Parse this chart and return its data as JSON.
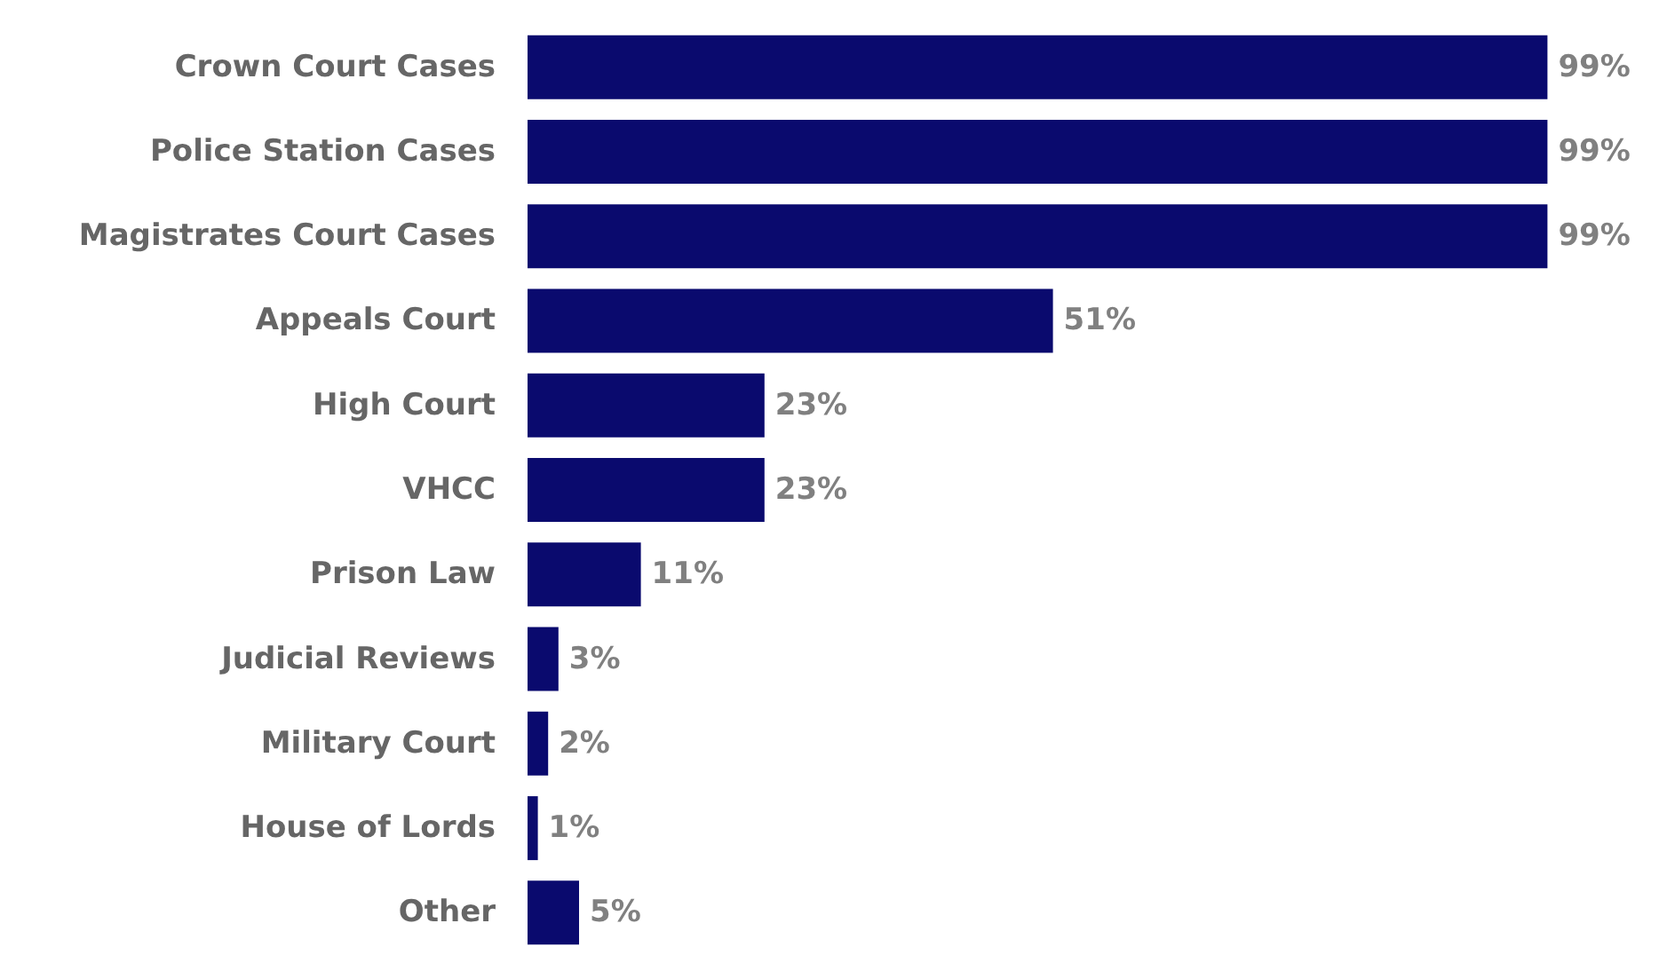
{
  "chart_data": {
    "type": "bar",
    "orientation": "horizontal",
    "categories": [
      "Crown Court Cases",
      "Police Station Cases",
      "Magistrates Court Cases",
      "Appeals Court",
      "High Court",
      "VHCC",
      "Prison Law",
      "Judicial Reviews",
      "Military Court",
      "House of Lords",
      "Other"
    ],
    "values": [
      99,
      99,
      99,
      51,
      23,
      23,
      11,
      3,
      2,
      1,
      5
    ],
    "value_labels": [
      "99%",
      "99%",
      "99%",
      "51%",
      "23%",
      "23%",
      "11%",
      "3%",
      "2%",
      "1%",
      "5%"
    ],
    "color": "#0a0a6e",
    "grid": false
  }
}
